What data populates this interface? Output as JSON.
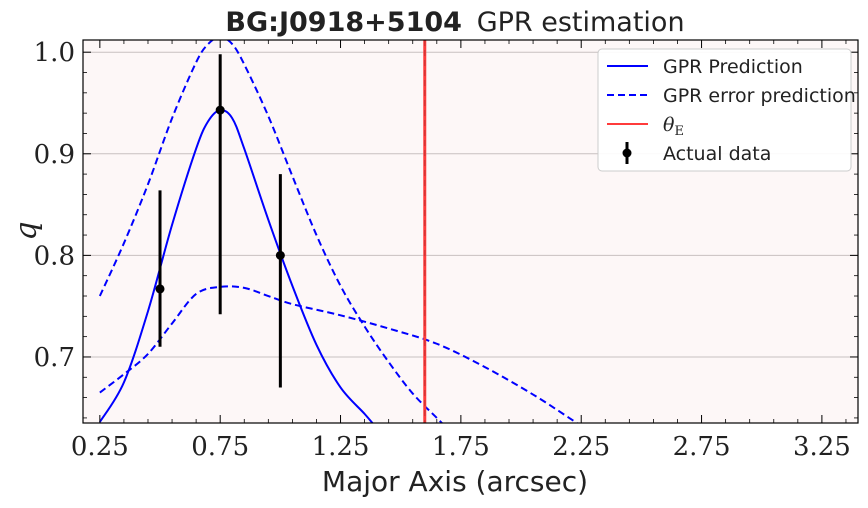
{
  "chart_data": {
    "type": "line",
    "title_bold": "BG:J0918+5104",
    "title_rest": "GPR estimation",
    "xlabel": "Major Axis (arcsec)",
    "ylabel": "q",
    "xlim": [
      0.18,
      3.4
    ],
    "ylim": [
      0.635,
      1.012
    ],
    "x_ticks": [
      0.25,
      0.75,
      1.25,
      1.75,
      2.25,
      2.75,
      3.25
    ],
    "x_tick_labels": [
      "0.25",
      "0.75",
      "1.25",
      "1.75",
      "2.25",
      "2.75",
      "3.25"
    ],
    "y_ticks": [
      0.7,
      0.8,
      0.9,
      1.0
    ],
    "y_tick_labels": [
      "0.7",
      "0.8",
      "0.9",
      "1.0"
    ],
    "grid": "horizontal",
    "legend_position": "top-right",
    "background_color": "#fdf7f7",
    "series": [
      {
        "name": "GPR Prediction",
        "style": "solid",
        "color": "#0000ff",
        "x": [
          0.25,
          0.35,
          0.45,
          0.55,
          0.65,
          0.7,
          0.75,
          0.8,
          0.85,
          0.95,
          1.05,
          1.15,
          1.25,
          1.35,
          1.4
        ],
        "y": [
          0.636,
          0.675,
          0.745,
          0.83,
          0.905,
          0.932,
          0.943,
          0.935,
          0.905,
          0.835,
          0.77,
          0.712,
          0.67,
          0.644,
          0.63
        ]
      },
      {
        "name": "GPR error prediction",
        "style": "dashed",
        "color": "#0000ff",
        "x": [
          0.25,
          0.35,
          0.45,
          0.55,
          0.65,
          0.7,
          0.75,
          0.8,
          0.85,
          0.95,
          1.05,
          1.15,
          1.25,
          1.35,
          1.45,
          1.55,
          1.65,
          1.7
        ],
        "y": [
          0.76,
          0.812,
          0.87,
          0.935,
          0.99,
          1.008,
          1.015,
          1.008,
          0.988,
          0.937,
          0.878,
          0.82,
          0.77,
          0.73,
          0.695,
          0.664,
          0.64,
          0.628
        ]
      },
      {
        "name": "GPR error prediction (lower)",
        "style": "dashed",
        "color": "#0000ff",
        "x": [
          0.25,
          0.35,
          0.45,
          0.55,
          0.65,
          0.75,
          0.85,
          0.95,
          1.05,
          1.25,
          1.45,
          1.65,
          1.85,
          2.05,
          2.2,
          2.25
        ],
        "y": [
          0.665,
          0.683,
          0.703,
          0.733,
          0.762,
          0.769,
          0.768,
          0.76,
          0.752,
          0.741,
          0.728,
          0.713,
          0.69,
          0.663,
          0.64,
          0.632
        ]
      }
    ],
    "actual_data": {
      "name": "Actual data",
      "color": "#000000",
      "x": [
        0.5,
        0.75,
        1.0
      ],
      "y": [
        0.767,
        0.943,
        0.8
      ],
      "y_low": [
        0.71,
        0.742,
        0.67
      ],
      "y_high": [
        0.864,
        0.998,
        0.88
      ]
    },
    "theta_e": {
      "name": "θE",
      "name_main": "θ",
      "name_sub": "E",
      "x": 1.6,
      "color": "#ff3b3b"
    }
  }
}
